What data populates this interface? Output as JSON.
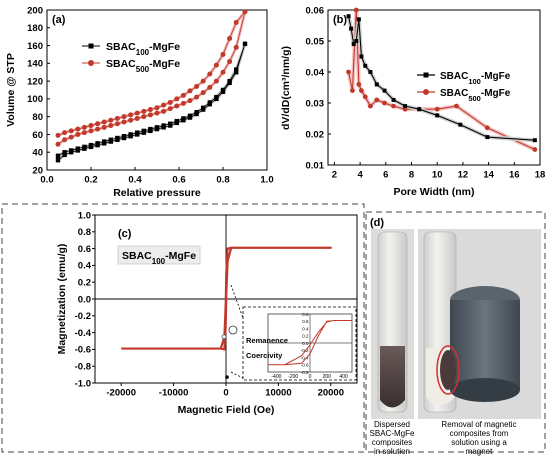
{
  "chart_data": [
    {
      "panel": "(a)",
      "type": "scatter",
      "xlabel": "Relative pressure",
      "ylabel": "Volume @ STP",
      "xlim": [
        0.0,
        1.0
      ],
      "ylim": [
        20,
        200
      ],
      "xticks": [
        "0.0",
        "0.2",
        "0.4",
        "0.6",
        "0.8",
        "1.0"
      ],
      "yticks": [
        "20",
        "40",
        "60",
        "80",
        "100",
        "120",
        "140",
        "160",
        "180",
        "200"
      ],
      "legend_position": "top-left",
      "series": [
        {
          "name": "SBAC100-MgFe",
          "name_base": "SBAC",
          "name_sub": "100",
          "name_suffix": "-MgFe",
          "color": "#000000",
          "marker": "square",
          "x": [
            0.05,
            0.08,
            0.11,
            0.14,
            0.17,
            0.2,
            0.23,
            0.26,
            0.29,
            0.32,
            0.35,
            0.38,
            0.41,
            0.44,
            0.47,
            0.5,
            0.53,
            0.56,
            0.59,
            0.62,
            0.65,
            0.68,
            0.71,
            0.74,
            0.77,
            0.8,
            0.83,
            0.86,
            0.9,
            0.86,
            0.83,
            0.8,
            0.77,
            0.74,
            0.71,
            0.68,
            0.65,
            0.62,
            0.59,
            0.56,
            0.53,
            0.5,
            0.47,
            0.44,
            0.41,
            0.38,
            0.35,
            0.32,
            0.29,
            0.26,
            0.23,
            0.2,
            0.17,
            0.14,
            0.11,
            0.08,
            0.05
          ],
          "y": [
            31,
            37,
            40,
            42,
            44,
            46,
            48,
            50,
            52,
            54,
            56,
            58,
            60,
            62,
            64,
            66,
            68,
            70,
            73,
            76,
            79,
            83,
            88,
            94,
            100,
            108,
            118,
            130,
            162,
            133,
            120,
            110,
            102,
            96,
            90,
            85,
            81,
            78,
            75,
            72,
            70,
            68,
            66,
            64,
            62,
            60,
            58,
            56,
            54,
            52,
            50,
            48,
            46,
            44,
            42,
            40,
            36
          ]
        },
        {
          "name": "SBAC500-MgFe",
          "name_base": "SBAC",
          "name_sub": "500",
          "name_suffix": "-MgFe",
          "color": "#c0392b",
          "marker": "circle",
          "x": [
            0.05,
            0.08,
            0.11,
            0.14,
            0.17,
            0.2,
            0.23,
            0.26,
            0.29,
            0.32,
            0.35,
            0.38,
            0.41,
            0.44,
            0.47,
            0.5,
            0.53,
            0.56,
            0.59,
            0.62,
            0.65,
            0.68,
            0.71,
            0.74,
            0.77,
            0.8,
            0.83,
            0.86,
            0.9,
            0.86,
            0.83,
            0.8,
            0.77,
            0.74,
            0.71,
            0.68,
            0.65,
            0.62,
            0.59,
            0.56,
            0.53,
            0.5,
            0.47,
            0.44,
            0.41,
            0.38,
            0.35,
            0.32,
            0.29,
            0.26,
            0.23,
            0.2,
            0.17,
            0.14,
            0.11,
            0.08,
            0.05
          ],
          "y": [
            49,
            54,
            57,
            60,
            62,
            64,
            66,
            68,
            70,
            72,
            74,
            76,
            78,
            80,
            82,
            84,
            86,
            89,
            92,
            95,
            98,
            102,
            107,
            113,
            120,
            130,
            142,
            158,
            198,
            186,
            168,
            150,
            138,
            128,
            120,
            114,
            109,
            104,
            100,
            96,
            93,
            90,
            88,
            86,
            84,
            82,
            80,
            78,
            76,
            74,
            72,
            70,
            68,
            66,
            64,
            62,
            59
          ]
        }
      ]
    },
    {
      "panel": "(b)",
      "type": "line",
      "xlabel": "Pore Width (nm)",
      "ylabel": "dV/dD(cm³/nm/g)",
      "xlim": [
        1.5,
        18
      ],
      "ylim": [
        0.01,
        0.06
      ],
      "xticks": [
        "2",
        "4",
        "6",
        "8",
        "10",
        "12",
        "14",
        "16",
        "18"
      ],
      "yticks": [
        "0.01",
        "0.02",
        "0.03",
        "0.04",
        "0.05",
        "0.06"
      ],
      "legend_position": "center-right",
      "series": [
        {
          "name": "SBAC100-MgFe",
          "name_base": "SBAC",
          "name_sub": "100",
          "name_suffix": "-MgFe",
          "color": "#000000",
          "marker": "square",
          "x": [
            3.1,
            3.3,
            3.5,
            3.7,
            3.9,
            4.1,
            4.4,
            4.8,
            5.3,
            5.9,
            6.6,
            7.5,
            8.6,
            10.0,
            11.8,
            13.9,
            17.6
          ],
          "y": [
            0.058,
            0.054,
            0.049,
            0.05,
            0.057,
            0.045,
            0.042,
            0.04,
            0.036,
            0.034,
            0.031,
            0.029,
            0.028,
            0.026,
            0.023,
            0.019,
            0.018
          ]
        },
        {
          "name": "SBAC500-MgFe",
          "name_base": "SBAC",
          "name_sub": "500",
          "name_suffix": "-MgFe",
          "color": "#c0392b",
          "marker": "circle",
          "x": [
            3.1,
            3.4,
            3.7,
            3.9,
            4.1,
            4.4,
            4.8,
            5.3,
            5.9,
            6.6,
            7.5,
            8.6,
            10.0,
            11.5,
            13.9,
            17.6
          ],
          "y": [
            0.04,
            0.034,
            0.06,
            0.036,
            0.034,
            0.032,
            0.029,
            0.031,
            0.03,
            0.029,
            0.028,
            0.028,
            0.028,
            0.029,
            0.022,
            0.015
          ]
        }
      ]
    },
    {
      "panel": "(c)",
      "type": "line",
      "xlabel": "Magnetic Field (Oe)",
      "ylabel": "Magnetization (emu/g)",
      "xlim": [
        -25000,
        25000
      ],
      "ylim": [
        -1.0,
        1.0
      ],
      "xticks": [
        "-20000",
        "-10000",
        "0",
        "10000",
        "20000"
      ],
      "yticks": [
        "-1.0",
        "-0.8",
        "-0.6",
        "-0.4",
        "-0.2",
        "0.0",
        "0.2",
        "0.4",
        "0.6",
        "0.8",
        "1.0"
      ],
      "label_base": "SBAC",
      "label_sub": "100",
      "label_suffix": "-MgFe",
      "series": [
        {
          "name": "hysteresis loop",
          "color": "#c0392b",
          "x": [
            -20000,
            -1000,
            -300,
            -50,
            50,
            300,
            1000,
            20000,
            1000,
            300,
            50,
            -50,
            -300,
            -1000,
            -20000
          ],
          "y": [
            -0.59,
            -0.59,
            -0.45,
            -0.05,
            0.3,
            0.6,
            0.61,
            0.61,
            0.61,
            0.45,
            0.05,
            -0.3,
            -0.6,
            -0.59,
            -0.59
          ]
        }
      ],
      "inset": {
        "xlim": [
          -500,
          500
        ],
        "ylim": [
          -0.8,
          0.8
        ],
        "xticks": [
          "-400",
          "-200",
          "0",
          "200",
          "400"
        ],
        "yticks": [
          "-0.8",
          "-0.6",
          "-0.4",
          "-0.2",
          "0.0",
          "0.2",
          "0.4",
          "0.6",
          "0.8"
        ],
        "annotations": [
          "Remanence",
          "Coercivity"
        ],
        "series": [
          {
            "color": "#c0392b",
            "x": [
              -500,
              -300,
              -100,
              0,
              100,
              200,
              280,
              500,
              280,
              200,
              100,
              0,
              -100,
              -300,
              -500
            ],
            "y": [
              -0.6,
              -0.6,
              -0.56,
              -0.3,
              0.2,
              0.6,
              0.62,
              0.62,
              0.62,
              0.58,
              0.3,
              -0.05,
              -0.35,
              -0.6,
              -0.6
            ]
          }
        ]
      }
    }
  ],
  "panel_d": {
    "label": "(d)",
    "caption_left": [
      "Dispersed",
      "SBAC-MgFe",
      "composites",
      "in solution"
    ],
    "caption_right": [
      "Removal of magnetic",
      "composites from",
      "solution using a",
      "magnet"
    ],
    "colors": {
      "suspension": "#4a3a3a",
      "magnet": "#4b5560",
      "highlight": "#d32f2f",
      "tube_bg": "#e4e4e2"
    }
  }
}
